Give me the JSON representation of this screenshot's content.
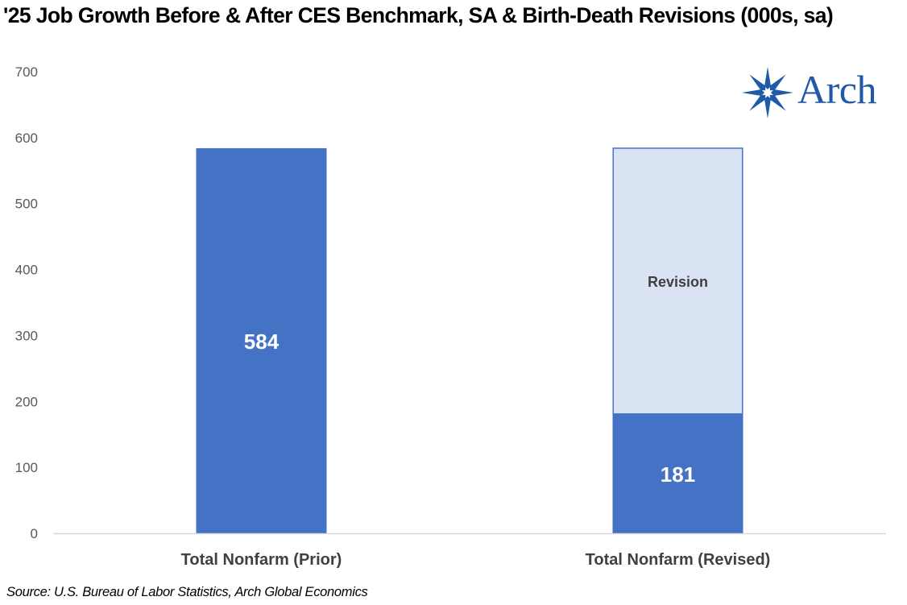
{
  "title": "'25 Job Growth Before & After CES Benchmark, SA & Birth-Death Revisions (000s, sa)",
  "source": "Source: U.S. Bureau of Labor Statistics, Arch Global Economics",
  "logo": {
    "text": "Arch",
    "color": "#1f5aa6"
  },
  "chart_data": {
    "type": "bar",
    "stacked": true,
    "categories": [
      "Total Nonfarm (Prior)",
      "Total Nonfarm (Revised)"
    ],
    "ylim": [
      0,
      700
    ],
    "yticks": [
      0,
      100,
      200,
      300,
      400,
      500,
      600,
      700
    ],
    "grid": false,
    "series": [
      {
        "values": [
          584,
          181
        ],
        "color": "#4472c4",
        "labels": [
          "584",
          "181"
        ]
      },
      {
        "values": [
          0,
          403
        ],
        "color": "#dae3f3",
        "border": "#4472c4",
        "labels": [
          "",
          "Revision"
        ]
      }
    ]
  }
}
